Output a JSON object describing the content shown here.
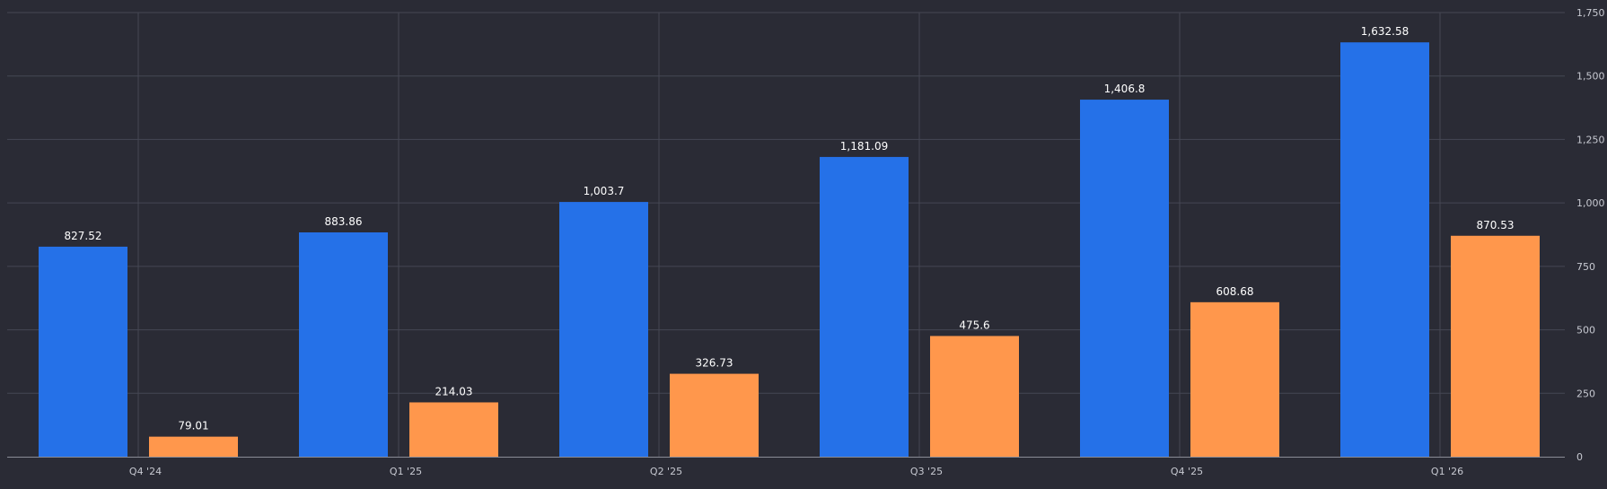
{
  "chart_data": {
    "type": "bar",
    "categories": [
      "Q4 '24",
      "Q1 '25",
      "Q2 '25",
      "Q3 '25",
      "Q4 '25",
      "Q1 '26"
    ],
    "series": [
      {
        "values": [
          827.52,
          883.86,
          1003.7,
          1181.09,
          1406.8,
          1632.58
        ],
        "labels": [
          "827.52",
          "883.86",
          "1,003.7",
          "1,181.09",
          "1,406.8",
          "1,632.58"
        ],
        "color": "#2571e8"
      },
      {
        "values": [
          79.01,
          214.03,
          326.73,
          475.6,
          608.68,
          870.53
        ],
        "labels": [
          "79.01",
          "214.03",
          "326.73",
          "475.6",
          "608.68",
          "870.53"
        ],
        "color": "#ff974c"
      }
    ],
    "ylim": [
      0,
      1750
    ],
    "yticks": [
      0,
      250,
      500,
      750,
      1000,
      1250,
      1500,
      1750
    ],
    "ytick_labels": [
      "0",
      "250",
      "500",
      "750",
      "1,000",
      "1,250",
      "1,500",
      "1,750"
    ],
    "y_axis_position": "right",
    "grid": true,
    "background": "#2a2b35",
    "grid_color": "#454754"
  }
}
